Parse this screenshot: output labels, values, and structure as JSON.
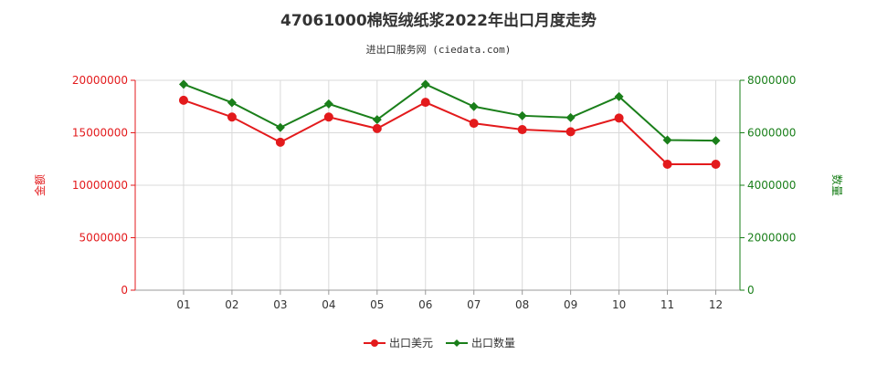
{
  "chart_data": {
    "type": "line",
    "title": "47061000棉短绒纸浆2022年出口月度走势",
    "subtitle": "进出口服务网 (ciedata.com)",
    "categories": [
      "01",
      "02",
      "03",
      "04",
      "05",
      "06",
      "07",
      "08",
      "09",
      "10",
      "11",
      "12"
    ],
    "y_left": {
      "label": "金额",
      "min": 0,
      "max": 20000000,
      "ticks": [
        "0",
        "5000000",
        "10000000",
        "15000000",
        "20000000"
      ],
      "color": "#e31a1c"
    },
    "y_right": {
      "label": "数量",
      "min": 0,
      "max": 8000000,
      "ticks": [
        "0",
        "2000000",
        "4000000",
        "6000000",
        "8000000"
      ],
      "color": "#1a7f1a"
    },
    "grid": true,
    "legend_position": "bottom-center",
    "series": [
      {
        "name": "出口美元",
        "axis": "left",
        "color": "#e31a1c",
        "marker": "circle",
        "values": [
          18100000,
          16500000,
          14100000,
          16500000,
          15400000,
          17900000,
          15900000,
          15300000,
          15100000,
          16400000,
          12000000,
          12000000
        ]
      },
      {
        "name": "出口数量",
        "axis": "right",
        "color": "#1a7f1a",
        "marker": "diamond",
        "values": [
          7850000,
          7150000,
          6200000,
          7100000,
          6500000,
          7850000,
          7000000,
          6650000,
          6580000,
          7380000,
          5720000,
          5700000
        ]
      }
    ]
  }
}
